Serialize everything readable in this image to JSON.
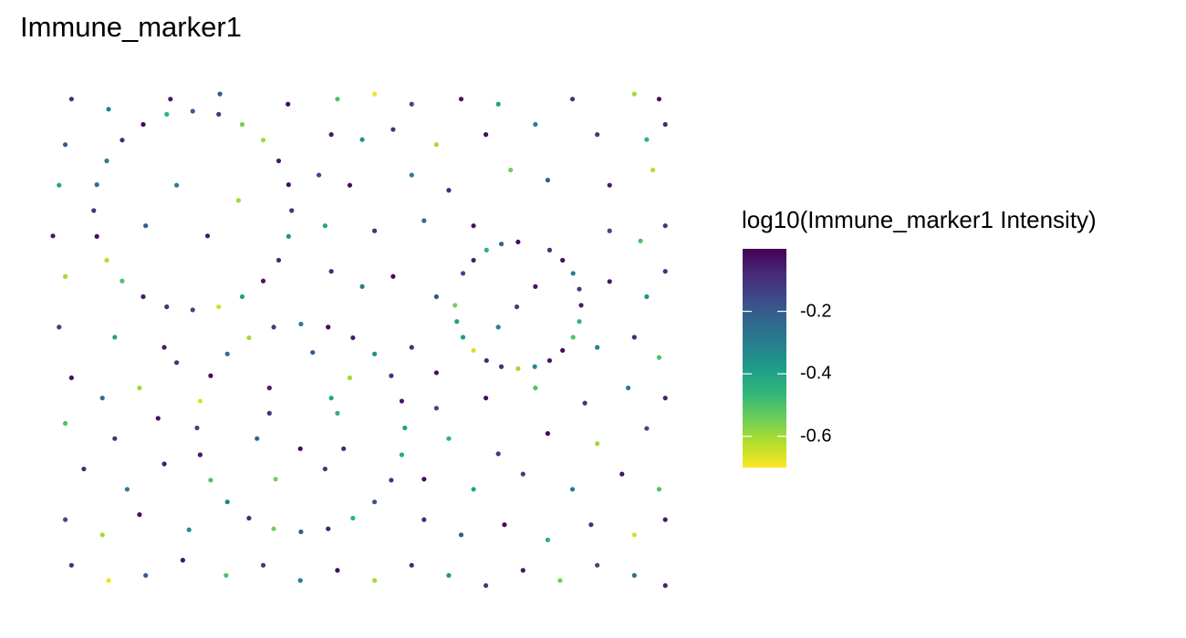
{
  "chart_data": {
    "type": "scatter",
    "title": "Immune_marker1",
    "xlabel": "",
    "ylabel": "",
    "axes_visible": false,
    "grid": false,
    "legend": {
      "title": "log10(Immune_marker1 Intensity)",
      "placement": "right",
      "type": "colorbar",
      "range": [
        -0.7,
        0.0
      ],
      "ticks": [
        {
          "value": -0.2,
          "label": "-0.2"
        },
        {
          "value": -0.4,
          "label": "-0.4"
        },
        {
          "value": -0.6,
          "label": "-0.6"
        }
      ],
      "colormap": "viridis",
      "colors": [
        "#fde725",
        "#b5de2b",
        "#6ece58",
        "#35b779",
        "#1f9e89",
        "#26828e",
        "#31688e",
        "#3e4989",
        "#482878",
        "#440154"
      ]
    },
    "xlim": [
      0,
      100
    ],
    "ylim": [
      0,
      100
    ],
    "points": [
      [
        38.6,
        75,
        -0.1
      ],
      [
        36.5,
        84.8,
        -0.05
      ],
      [
        30.6,
        92,
        -0.55
      ],
      [
        22.6,
        94.6,
        -0.2
      ],
      [
        14.6,
        92,
        -0.02
      ],
      [
        8.7,
        84.8,
        -0.3
      ],
      [
        6.6,
        75,
        -0.1
      ],
      [
        8.7,
        65.2,
        -0.62
      ],
      [
        14.6,
        58,
        -0.05
      ],
      [
        22.6,
        55.4,
        -0.15
      ],
      [
        30.6,
        58,
        -0.4
      ],
      [
        36.5,
        65.2,
        -0.08
      ],
      [
        38.1,
        80.1,
        -0.03
      ],
      [
        34,
        88.9,
        -0.6
      ],
      [
        26.8,
        94,
        -0.12
      ],
      [
        18.4,
        94,
        -0.45
      ],
      [
        11.2,
        88.9,
        -0.08
      ],
      [
        7.1,
        80.1,
        -0.25
      ],
      [
        7.1,
        69.9,
        -0.02
      ],
      [
        11.2,
        61.1,
        -0.5
      ],
      [
        18.4,
        56,
        -0.1
      ],
      [
        26.8,
        56,
        -0.65
      ],
      [
        34,
        61.1,
        -0.04
      ],
      [
        38.1,
        69.9,
        -0.35
      ],
      [
        56.9,
        32.1,
        -0.4
      ],
      [
        54.7,
        42.4,
        -0.1
      ],
      [
        48.5,
        49.9,
        -0.05
      ],
      [
        40.1,
        52.6,
        -0.3
      ],
      [
        31.7,
        49.9,
        -0.6
      ],
      [
        25.5,
        42.4,
        -0.02
      ],
      [
        23.3,
        32.1,
        -0.15
      ],
      [
        25.5,
        21.8,
        -0.5
      ],
      [
        31.7,
        14.3,
        -0.08
      ],
      [
        40.1,
        11.6,
        -0.2
      ],
      [
        48.5,
        14.3,
        -0.45
      ],
      [
        54.7,
        21.8,
        -0.1
      ],
      [
        56.4,
        37.4,
        -0.05
      ],
      [
        52,
        46.7,
        -0.35
      ],
      [
        44.5,
        52,
        -0.02
      ],
      [
        35.7,
        52,
        -0.12
      ],
      [
        28.2,
        46.7,
        -0.25
      ],
      [
        23.8,
        37.4,
        -0.66
      ],
      [
        23.8,
        26.8,
        -0.04
      ],
      [
        28.2,
        17.5,
        -0.3
      ],
      [
        35.7,
        12.2,
        -0.55
      ],
      [
        44.5,
        12.2,
        -0.06
      ],
      [
        52,
        17.5,
        -0.18
      ],
      [
        56.4,
        26.8,
        -0.42
      ],
      [
        85.4,
        56.3,
        -0.05
      ],
      [
        84.1,
        62.6,
        -0.3
      ],
      [
        80.3,
        67.2,
        -0.1
      ],
      [
        75.2,
        68.8,
        -0.02
      ],
      [
        70.1,
        67.2,
        -0.45
      ],
      [
        66.3,
        62.6,
        -0.15
      ],
      [
        65,
        56.3,
        -0.55
      ],
      [
        66.3,
        50,
        -0.38
      ],
      [
        70.1,
        45.4,
        -0.08
      ],
      [
        75.2,
        43.8,
        -0.6
      ],
      [
        80.3,
        45.4,
        -0.04
      ],
      [
        84.1,
        50,
        -0.5
      ],
      [
        85.1,
        59.5,
        -0.12
      ],
      [
        82.4,
        65.2,
        -0.03
      ],
      [
        72.5,
        68.4,
        -0.22
      ],
      [
        68,
        65.2,
        -0.06
      ],
      [
        65.3,
        53.1,
        -0.4
      ],
      [
        68,
        47.4,
        -0.65
      ],
      [
        72.5,
        44.2,
        -0.1
      ],
      [
        77.9,
        44.2,
        -0.33
      ],
      [
        82.4,
        47.4,
        -0.02
      ],
      [
        85.1,
        53.1,
        -0.45
      ],
      [
        3,
        97,
        -0.1
      ],
      [
        9,
        95,
        -0.3
      ],
      [
        19,
        97,
        -0.05
      ],
      [
        27,
        98,
        -0.2
      ],
      [
        38,
        96,
        -0.02
      ],
      [
        46,
        97,
        -0.5
      ],
      [
        52,
        98,
        -0.68
      ],
      [
        58,
        96,
        -0.15
      ],
      [
        66,
        97,
        -0.04
      ],
      [
        72,
        96,
        -0.4
      ],
      [
        84,
        97,
        -0.1
      ],
      [
        94,
        98,
        -0.6
      ],
      [
        98,
        97,
        -0.03
      ],
      [
        2,
        88,
        -0.2
      ],
      [
        45,
        90,
        -0.05
      ],
      [
        50,
        89,
        -0.35
      ],
      [
        55,
        91,
        -0.1
      ],
      [
        62,
        88,
        -0.6
      ],
      [
        70,
        90,
        -0.02
      ],
      [
        78,
        92,
        -0.3
      ],
      [
        88,
        90,
        -0.12
      ],
      [
        96,
        89,
        -0.45
      ],
      [
        99,
        92,
        -0.08
      ],
      [
        1,
        80,
        -0.4
      ],
      [
        43,
        82,
        -0.15
      ],
      [
        48,
        80,
        -0.02
      ],
      [
        58,
        82,
        -0.3
      ],
      [
        64,
        79,
        -0.08
      ],
      [
        74,
        83,
        -0.55
      ],
      [
        80,
        81,
        -0.2
      ],
      [
        90,
        80,
        -0.05
      ],
      [
        97,
        83,
        -0.62
      ],
      [
        0,
        70,
        -0.05
      ],
      [
        44,
        72,
        -0.4
      ],
      [
        52,
        71,
        -0.1
      ],
      [
        60,
        73,
        -0.25
      ],
      [
        68,
        72,
        -0.03
      ],
      [
        90,
        71,
        -0.15
      ],
      [
        95,
        69,
        -0.5
      ],
      [
        99,
        72,
        -0.1
      ],
      [
        2,
        62,
        -0.6
      ],
      [
        45,
        63,
        -0.08
      ],
      [
        50,
        60,
        -0.3
      ],
      [
        55,
        62,
        -0.02
      ],
      [
        62,
        58,
        -0.18
      ],
      [
        90,
        61,
        -0.04
      ],
      [
        96,
        58,
        -0.35
      ],
      [
        99,
        63,
        -0.1
      ],
      [
        1,
        52,
        -0.12
      ],
      [
        10,
        50,
        -0.4
      ],
      [
        18,
        48,
        -0.05
      ],
      [
        42,
        47,
        -0.2
      ],
      [
        48,
        42,
        -0.6
      ],
      [
        58,
        48,
        -0.1
      ],
      [
        62,
        43,
        -0.03
      ],
      [
        88,
        48,
        -0.3
      ],
      [
        94,
        50,
        -0.08
      ],
      [
        98,
        46,
        -0.5
      ],
      [
        3,
        42,
        -0.03
      ],
      [
        8,
        38,
        -0.25
      ],
      [
        14,
        40,
        -0.6
      ],
      [
        20,
        45,
        -0.1
      ],
      [
        35,
        40,
        -0.05
      ],
      [
        45,
        38,
        -0.4
      ],
      [
        62,
        36,
        -0.15
      ],
      [
        70,
        38,
        -0.02
      ],
      [
        78,
        40,
        -0.5
      ],
      [
        86,
        37,
        -0.1
      ],
      [
        93,
        40,
        -0.3
      ],
      [
        99,
        38,
        -0.06
      ],
      [
        2,
        33,
        -0.5
      ],
      [
        10,
        30,
        -0.1
      ],
      [
        17,
        34,
        -0.03
      ],
      [
        33,
        30,
        -0.22
      ],
      [
        47,
        28,
        -0.08
      ],
      [
        64,
        30,
        -0.45
      ],
      [
        72,
        27,
        -0.12
      ],
      [
        80,
        31,
        -0.02
      ],
      [
        88,
        29,
        -0.6
      ],
      [
        96,
        32,
        -0.15
      ],
      [
        5,
        24,
        -0.08
      ],
      [
        12,
        20,
        -0.3
      ],
      [
        18,
        25,
        -0.05
      ],
      [
        36,
        22,
        -0.55
      ],
      [
        44,
        24,
        -0.1
      ],
      [
        60,
        22,
        -0.02
      ],
      [
        68,
        20,
        -0.4
      ],
      [
        76,
        23,
        -0.12
      ],
      [
        84,
        20,
        -0.3
      ],
      [
        92,
        23,
        -0.04
      ],
      [
        98,
        20,
        -0.5
      ],
      [
        2,
        14,
        -0.15
      ],
      [
        8,
        11,
        -0.6
      ],
      [
        14,
        15,
        -0.03
      ],
      [
        22,
        12,
        -0.35
      ],
      [
        60,
        14,
        -0.08
      ],
      [
        66,
        11,
        -0.2
      ],
      [
        73,
        13,
        -0.02
      ],
      [
        80,
        10,
        -0.45
      ],
      [
        87,
        13,
        -0.1
      ],
      [
        94,
        11,
        -0.65
      ],
      [
        99,
        14,
        -0.05
      ],
      [
        3,
        5,
        -0.1
      ],
      [
        9,
        2,
        -0.68
      ],
      [
        15,
        3,
        -0.2
      ],
      [
        21,
        6,
        -0.04
      ],
      [
        28,
        3,
        -0.5
      ],
      [
        34,
        5,
        -0.12
      ],
      [
        40,
        2,
        -0.3
      ],
      [
        46,
        4,
        -0.02
      ],
      [
        52,
        2,
        -0.6
      ],
      [
        58,
        5,
        -0.08
      ],
      [
        64,
        3,
        -0.35
      ],
      [
        70,
        1,
        -0.1
      ],
      [
        76,
        4,
        -0.04
      ],
      [
        82,
        2,
        -0.55
      ],
      [
        88,
        5,
        -0.15
      ],
      [
        94,
        3,
        -0.25
      ],
      [
        99,
        1,
        -0.06
      ],
      [
        20,
        80,
        -0.3
      ],
      [
        25,
        70,
        -0.05
      ],
      [
        15,
        72,
        -0.2
      ],
      [
        30,
        77,
        -0.6
      ],
      [
        40,
        28,
        -0.02
      ],
      [
        35,
        35,
        -0.1
      ],
      [
        46,
        35,
        -0.45
      ],
      [
        75,
        56,
        -0.12
      ],
      [
        78,
        60,
        -0.04
      ],
      [
        72,
        52,
        -0.3
      ]
    ]
  }
}
